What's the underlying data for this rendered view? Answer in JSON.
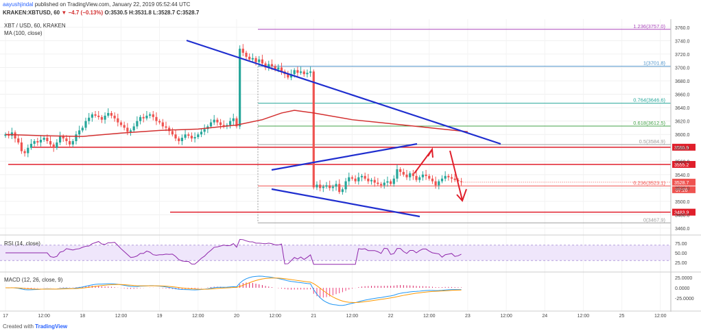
{
  "header": {
    "user": "aayushjindal",
    "published": "published on TradingView.com, January 22, 2019 05:52:44 UTC",
    "symbol_line": "KRAKEN:XBTUSD, 60",
    "change": "▼ −4.7 (−0.13%)",
    "ohlc": "O:3530.5 H:3531.8 L:3528.7 C:3528.7"
  },
  "legend": {
    "pair": "XBT / USD, 60, KRAKEN",
    "ma": "MA (100, close)",
    "rsi": "RSI (14, close)",
    "macd": "MACD (12, 26, close, 9)"
  },
  "footer": {
    "created_with": "Created with",
    "brand": "TradingView"
  },
  "colors": {
    "up": "#26a69a",
    "down": "#ef5350",
    "ma": "#d32f2f",
    "trend": "#1f2ecf",
    "level": "#e01f2b",
    "fib": "#9e9e9e",
    "rsi": "#8e24aa",
    "rsi_bg": "#efe6fb",
    "macd": "#2196f3",
    "signal": "#ff9800",
    "hist_pos": "#d81b60",
    "hist_neg": "#ec407a"
  },
  "chart_data": {
    "type": "candlestick",
    "price_axis": {
      "ticks": [
        3460,
        3480,
        3500,
        3520,
        3540,
        3560,
        3580,
        3600,
        3620,
        3640,
        3660,
        3680,
        3700,
        3720,
        3740,
        3760
      ],
      "range": [
        3450,
        3770
      ]
    },
    "time_axis": [
      {
        "label": "17",
        "t": 0
      },
      {
        "label": "12:00",
        "t": 12
      },
      {
        "label": "18",
        "t": 24
      },
      {
        "label": "12:00",
        "t": 36
      },
      {
        "label": "19",
        "t": 48
      },
      {
        "label": "12:00",
        "t": 60
      },
      {
        "label": "20",
        "t": 72
      },
      {
        "label": "12:00",
        "t": 84
      },
      {
        "label": "21",
        "t": 96
      },
      {
        "label": "12:00",
        "t": 108
      },
      {
        "label": "22",
        "t": 120
      },
      {
        "label": "12:00",
        "t": 132
      },
      {
        "label": "23",
        "t": 144
      },
      {
        "label": "12:00",
        "t": 156
      },
      {
        "label": "24",
        "t": 168
      },
      {
        "label": "12:00",
        "t": 180
      },
      {
        "label": "25",
        "t": 192
      },
      {
        "label": "12:00",
        "t": 204
      }
    ],
    "closes": [
      3600,
      3598,
      3603,
      3594,
      3588,
      3575,
      3572,
      3580,
      3586,
      3590,
      3588,
      3592,
      3595,
      3590,
      3585,
      3580,
      3588,
      3597,
      3594,
      3590,
      3585,
      3590,
      3600,
      3606,
      3610,
      3620,
      3625,
      3630,
      3628,
      3626,
      3622,
      3628,
      3632,
      3628,
      3624,
      3618,
      3614,
      3610,
      3604,
      3606,
      3612,
      3620,
      3626,
      3624,
      3628,
      3630,
      3626,
      3620,
      3618,
      3612,
      3610,
      3605,
      3600,
      3594,
      3590,
      3595,
      3600,
      3598,
      3594,
      3596,
      3600,
      3604,
      3608,
      3612,
      3618,
      3622,
      3618,
      3614,
      3612,
      3614,
      3620,
      3624,
      3612,
      3728,
      3722,
      3716,
      3712,
      3714,
      3708,
      3712,
      3706,
      3700,
      3705,
      3702,
      3697,
      3700,
      3694,
      3690,
      3685,
      3690,
      3696,
      3692,
      3694,
      3690,
      3692,
      3694,
      3521,
      3525,
      3520,
      3522,
      3524,
      3520,
      3522,
      3526,
      3514,
      3518,
      3530,
      3536,
      3534,
      3530,
      3536,
      3538,
      3534,
      3530,
      3532,
      3528,
      3526,
      3524,
      3528,
      3530,
      3526,
      3534,
      3548,
      3544,
      3540,
      3536,
      3542,
      3538,
      3532,
      3536,
      3540,
      3538,
      3534,
      3530,
      3524,
      3530,
      3534,
      3538,
      3536,
      3534,
      3532,
      3530,
      3528.7
    ],
    "ma": {
      "name": "MA (100, close)",
      "points": [
        [
          0,
          3600
        ],
        [
          12,
          3598
        ],
        [
          24,
          3597
        ],
        [
          36,
          3602
        ],
        [
          48,
          3606
        ],
        [
          60,
          3608
        ],
        [
          64,
          3610
        ],
        [
          72,
          3614
        ],
        [
          80,
          3622
        ],
        [
          86,
          3632
        ],
        [
          90,
          3636
        ],
        [
          96,
          3632
        ],
        [
          108,
          3622
        ],
        [
          120,
          3616
        ],
        [
          132,
          3610
        ],
        [
          144,
          3604
        ]
      ]
    },
    "fib_levels": [
      {
        "label": "1.236(3757.0)",
        "value": 3757.0
      },
      {
        "label": "1(3701.8)",
        "value": 3701.8
      },
      {
        "label": "0.764(3646.6)",
        "value": 3646.6
      },
      {
        "label": "0.618(3612.5)",
        "value": 3612.5
      },
      {
        "label": "0.5(3584.9)",
        "value": 3584.9
      },
      {
        "label": "0.236(3523.1)",
        "value": 3523.1
      },
      {
        "label": "0(3467.9)",
        "value": 3467.9
      }
    ],
    "horizontal_levels": [
      {
        "label": "3580.9",
        "value": 3580.9
      },
      {
        "label": "3555.2",
        "value": 3555.2
      },
      {
        "label": "3483.9",
        "value": 3483.9
      }
    ],
    "current_price": {
      "label": "3528.7",
      "value": 3528.7,
      "countdown": "07:20"
    },
    "rsi_axis": [
      75.0,
      50.0,
      25.0
    ],
    "macd_axis": [
      25.0,
      0.0,
      -25.0
    ]
  }
}
